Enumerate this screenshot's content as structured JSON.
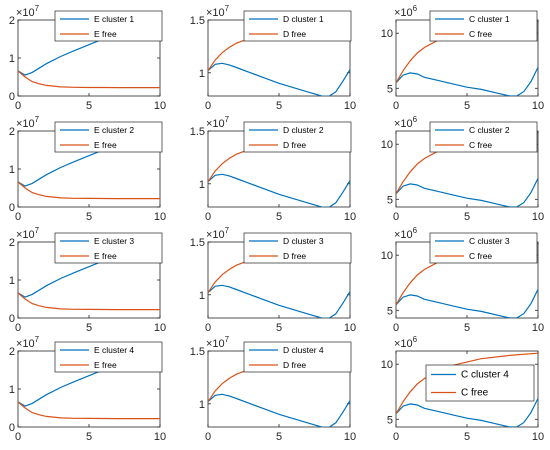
{
  "colors": {
    "cluster": "#0072BD",
    "free": "#D95319",
    "axis": "#262626"
  },
  "chart_data": [
    {
      "type": "line",
      "grid": false,
      "legend": "top-right",
      "x_ticks": [
        "0",
        "5",
        "10"
      ],
      "y_ticks": [
        "0",
        "1",
        "2"
      ],
      "y_exponent": "×10^7",
      "xlim": [
        0,
        10
      ],
      "ylim": [
        0,
        20000000
      ],
      "series": [
        {
          "name": "E cluster 1",
          "x": [
            0,
            0.5,
            1,
            2,
            3,
            4,
            5,
            6,
            7,
            8,
            9,
            10
          ],
          "y": [
            6600000,
            5500000,
            6200000,
            8500000,
            10400000,
            12000000,
            13500000,
            15000000,
            16200000,
            17200000,
            16800000,
            14800000
          ]
        },
        {
          "name": "E free",
          "x": [
            0,
            0.5,
            1,
            1.5,
            2,
            3,
            4,
            5,
            6,
            7,
            8,
            9,
            10
          ],
          "y": [
            6600000,
            5000000,
            3800000,
            3200000,
            2800000,
            2400000,
            2300000,
            2250000,
            2230000,
            2220000,
            2220000,
            2220000,
            2220000
          ]
        }
      ]
    },
    {
      "type": "line",
      "grid": false,
      "legend": "top-right",
      "x_ticks": [
        "0",
        "5",
        "10"
      ],
      "y_ticks": [
        "1",
        "1.5"
      ],
      "y_exponent": "×10^7",
      "xlim": [
        0,
        10
      ],
      "ylim": [
        7800000,
        15000000
      ],
      "series": [
        {
          "name": "D cluster 1",
          "x": [
            0,
            0.5,
            1,
            1.5,
            2,
            3,
            4,
            5,
            6,
            7,
            8,
            8.5,
            9,
            9.5,
            10
          ],
          "y": [
            10200000,
            10800000,
            10900000,
            10750000,
            10500000,
            10000000,
            9500000,
            9000000,
            8600000,
            8200000,
            7800000,
            7750000,
            8200000,
            9200000,
            10300000
          ]
        },
        {
          "name": "D free",
          "x": [
            0,
            0.5,
            1,
            1.5,
            2,
            3,
            4,
            6,
            8,
            10
          ],
          "y": [
            10200000,
            11200000,
            11900000,
            12400000,
            12800000,
            13300000,
            13700000,
            14100000,
            14300000,
            14400000
          ]
        }
      ]
    },
    {
      "type": "line",
      "grid": false,
      "legend": "top-right",
      "x_ticks": [
        "0",
        "5",
        "10"
      ],
      "y_ticks": [
        "5",
        "10"
      ],
      "y_exponent": "×10^6",
      "xlim": [
        0,
        10
      ],
      "ylim": [
        4300000,
        11200000
      ],
      "series": [
        {
          "name": "C cluster 1",
          "x": [
            0,
            0.5,
            1,
            1.5,
            2,
            3,
            4,
            5,
            6,
            7,
            8,
            8.5,
            9,
            9.5,
            10
          ],
          "y": [
            5500000,
            6200000,
            6400000,
            6300000,
            6000000,
            5700000,
            5400000,
            5100000,
            4900000,
            4600000,
            4300000,
            4300000,
            4700000,
            5600000,
            6900000
          ]
        },
        {
          "name": "C free",
          "x": [
            0,
            0.5,
            1,
            1.5,
            2,
            3,
            4,
            6,
            8,
            10
          ],
          "y": [
            5500000,
            6600000,
            7500000,
            8200000,
            8700000,
            9400000,
            9900000,
            10500000,
            10800000,
            11000000
          ]
        }
      ]
    },
    {
      "type": "line",
      "grid": false,
      "legend": "top-right",
      "x_ticks": [
        "0",
        "5",
        "10"
      ],
      "y_ticks": [
        "0",
        "1",
        "2"
      ],
      "y_exponent": "×10^7",
      "xlim": [
        0,
        10
      ],
      "ylim": [
        0,
        20000000
      ],
      "series": [
        {
          "name": "E cluster 2",
          "x": [
            0,
            0.5,
            1,
            2,
            3,
            4,
            5,
            6,
            7,
            8,
            9,
            10
          ],
          "y": [
            6600000,
            5500000,
            6200000,
            8500000,
            10400000,
            12000000,
            13500000,
            15000000,
            16200000,
            17200000,
            16800000,
            14800000
          ]
        },
        {
          "name": "E free",
          "x": [
            0,
            0.5,
            1,
            1.5,
            2,
            3,
            4,
            5,
            6,
            7,
            8,
            9,
            10
          ],
          "y": [
            6600000,
            5000000,
            3800000,
            3200000,
            2800000,
            2400000,
            2300000,
            2250000,
            2230000,
            2220000,
            2220000,
            2220000,
            2220000
          ]
        }
      ]
    },
    {
      "type": "line",
      "grid": false,
      "legend": "top-right",
      "x_ticks": [
        "0",
        "5",
        "10"
      ],
      "y_ticks": [
        "1",
        "1.5"
      ],
      "y_exponent": "×10^7",
      "xlim": [
        0,
        10
      ],
      "ylim": [
        7800000,
        15000000
      ],
      "series": [
        {
          "name": "D cluster 2",
          "x": [
            0,
            0.5,
            1,
            1.5,
            2,
            3,
            4,
            5,
            6,
            7,
            8,
            8.5,
            9,
            9.5,
            10
          ],
          "y": [
            10200000,
            10800000,
            10900000,
            10750000,
            10500000,
            10000000,
            9500000,
            9000000,
            8600000,
            8200000,
            7800000,
            7750000,
            8200000,
            9200000,
            10300000
          ]
        },
        {
          "name": "D free",
          "x": [
            0,
            0.5,
            1,
            1.5,
            2,
            3,
            4,
            6,
            8,
            10
          ],
          "y": [
            10200000,
            11200000,
            11900000,
            12400000,
            12800000,
            13300000,
            13700000,
            14100000,
            14300000,
            14400000
          ]
        }
      ]
    },
    {
      "type": "line",
      "grid": false,
      "legend": "top-right",
      "x_ticks": [
        "0",
        "5",
        "10"
      ],
      "y_ticks": [
        "5",
        "10"
      ],
      "y_exponent": "×10^6",
      "xlim": [
        0,
        10
      ],
      "ylim": [
        4300000,
        11200000
      ],
      "series": [
        {
          "name": "C cluster 2",
          "x": [
            0,
            0.5,
            1,
            1.5,
            2,
            3,
            4,
            5,
            6,
            7,
            8,
            8.5,
            9,
            9.5,
            10
          ],
          "y": [
            5500000,
            6200000,
            6400000,
            6300000,
            6000000,
            5700000,
            5400000,
            5100000,
            4900000,
            4600000,
            4300000,
            4300000,
            4700000,
            5600000,
            6900000
          ]
        },
        {
          "name": "C free",
          "x": [
            0,
            0.5,
            1,
            1.5,
            2,
            3,
            4,
            6,
            8,
            10
          ],
          "y": [
            5500000,
            6600000,
            7500000,
            8200000,
            8700000,
            9400000,
            9900000,
            10500000,
            10800000,
            11000000
          ]
        }
      ]
    },
    {
      "type": "line",
      "grid": false,
      "legend": "top-right",
      "x_ticks": [
        "0",
        "5",
        "10"
      ],
      "y_ticks": [
        "0",
        "1",
        "2"
      ],
      "y_exponent": "×10^7",
      "xlim": [
        0,
        10
      ],
      "ylim": [
        0,
        20000000
      ],
      "series": [
        {
          "name": "E cluster 3",
          "x": [
            0,
            0.5,
            1,
            2,
            3,
            4,
            5,
            6,
            7,
            8,
            9,
            10
          ],
          "y": [
            6600000,
            5500000,
            6200000,
            8500000,
            10400000,
            12000000,
            13500000,
            15000000,
            16200000,
            17200000,
            16800000,
            14800000
          ]
        },
        {
          "name": "E free",
          "x": [
            0,
            0.5,
            1,
            1.5,
            2,
            3,
            4,
            5,
            6,
            7,
            8,
            9,
            10
          ],
          "y": [
            6600000,
            5000000,
            3800000,
            3200000,
            2800000,
            2400000,
            2300000,
            2250000,
            2230000,
            2220000,
            2220000,
            2220000,
            2220000
          ]
        }
      ]
    },
    {
      "type": "line",
      "grid": false,
      "legend": "top-right",
      "x_ticks": [
        "0",
        "5",
        "10"
      ],
      "y_ticks": [
        "1",
        "1.5"
      ],
      "y_exponent": "×10^7",
      "xlim": [
        0,
        10
      ],
      "ylim": [
        7800000,
        15000000
      ],
      "series": [
        {
          "name": "D cluster 3",
          "x": [
            0,
            0.5,
            1,
            1.5,
            2,
            3,
            4,
            5,
            6,
            7,
            8,
            8.5,
            9,
            9.5,
            10
          ],
          "y": [
            10200000,
            10800000,
            10900000,
            10750000,
            10500000,
            10000000,
            9500000,
            9000000,
            8600000,
            8200000,
            7800000,
            7750000,
            8200000,
            9200000,
            10300000
          ]
        },
        {
          "name": "D free",
          "x": [
            0,
            0.5,
            1,
            1.5,
            2,
            3,
            4,
            6,
            8,
            10
          ],
          "y": [
            10200000,
            11200000,
            11900000,
            12400000,
            12800000,
            13300000,
            13700000,
            14100000,
            14300000,
            14400000
          ]
        }
      ]
    },
    {
      "type": "line",
      "grid": false,
      "legend": "top-right",
      "x_ticks": [
        "0",
        "5",
        "10"
      ],
      "y_ticks": [
        "5",
        "10"
      ],
      "y_exponent": "×10^6",
      "xlim": [
        0,
        10
      ],
      "ylim": [
        4300000,
        11200000
      ],
      "series": [
        {
          "name": "C cluster 3",
          "x": [
            0,
            0.5,
            1,
            1.5,
            2,
            3,
            4,
            5,
            6,
            7,
            8,
            8.5,
            9,
            9.5,
            10
          ],
          "y": [
            5500000,
            6200000,
            6400000,
            6300000,
            6000000,
            5700000,
            5400000,
            5100000,
            4900000,
            4600000,
            4300000,
            4300000,
            4700000,
            5600000,
            6900000
          ]
        },
        {
          "name": "C free",
          "x": [
            0,
            0.5,
            1,
            1.5,
            2,
            3,
            4,
            6,
            8,
            10
          ],
          "y": [
            5500000,
            6600000,
            7500000,
            8200000,
            8700000,
            9400000,
            9900000,
            10500000,
            10800000,
            11000000
          ]
        }
      ]
    },
    {
      "type": "line",
      "grid": false,
      "legend": "top-right",
      "x_ticks": [
        "0",
        "5",
        "10"
      ],
      "y_ticks": [
        "0",
        "1",
        "2"
      ],
      "y_exponent": "×10^7",
      "xlim": [
        0,
        10
      ],
      "ylim": [
        0,
        20000000
      ],
      "series": [
        {
          "name": "E cluster 4",
          "x": [
            0,
            0.5,
            1,
            2,
            3,
            4,
            5,
            6,
            7,
            8,
            9,
            10
          ],
          "y": [
            6600000,
            5500000,
            6200000,
            8500000,
            10400000,
            12000000,
            13500000,
            15000000,
            16200000,
            17200000,
            16800000,
            14800000
          ]
        },
        {
          "name": "E free",
          "x": [
            0,
            0.5,
            1,
            1.5,
            2,
            3,
            4,
            5,
            6,
            7,
            8,
            9,
            10
          ],
          "y": [
            6600000,
            5000000,
            3800000,
            3200000,
            2800000,
            2400000,
            2300000,
            2250000,
            2230000,
            2220000,
            2220000,
            2220000,
            2220000
          ]
        }
      ]
    },
    {
      "type": "line",
      "grid": false,
      "legend": "top-right",
      "x_ticks": [
        "0",
        "5",
        "10"
      ],
      "y_ticks": [
        "1",
        "1.5"
      ],
      "y_exponent": "×10^7",
      "xlim": [
        0,
        10
      ],
      "ylim": [
        7800000,
        15000000
      ],
      "series": [
        {
          "name": "D cluster 4",
          "x": [
            0,
            0.5,
            1,
            1.5,
            2,
            3,
            4,
            5,
            6,
            7,
            8,
            8.5,
            9,
            9.5,
            10
          ],
          "y": [
            10200000,
            10800000,
            10900000,
            10750000,
            10500000,
            10000000,
            9500000,
            9000000,
            8600000,
            8200000,
            7800000,
            7750000,
            8200000,
            9200000,
            10300000
          ]
        },
        {
          "name": "D free",
          "x": [
            0,
            0.5,
            1,
            1.5,
            2,
            3,
            4,
            6,
            8,
            10
          ],
          "y": [
            10200000,
            11200000,
            11900000,
            12400000,
            12800000,
            13300000,
            13700000,
            14100000,
            14300000,
            14400000
          ]
        }
      ]
    },
    {
      "type": "line",
      "grid": false,
      "legend": "top-right",
      "x_ticks": [
        "0",
        "5",
        "10"
      ],
      "y_ticks": [
        "5",
        "10"
      ],
      "y_exponent": "×10^6",
      "xlim": [
        0,
        10
      ],
      "ylim": [
        4300000,
        11200000
      ],
      "series": [
        {
          "name": "C cluster 4",
          "x": [
            0,
            0.5,
            1,
            1.5,
            2,
            3,
            4,
            5,
            6,
            7,
            8,
            8.5,
            9,
            9.5,
            10
          ],
          "y": [
            5500000,
            6200000,
            6400000,
            6300000,
            6000000,
            5700000,
            5400000,
            5100000,
            4900000,
            4600000,
            4300000,
            4300000,
            4700000,
            5600000,
            6900000
          ]
        },
        {
          "name": "C free",
          "x": [
            0,
            0.5,
            1,
            1.5,
            2,
            3,
            4,
            6,
            8,
            10
          ],
          "y": [
            5500000,
            6600000,
            7500000,
            8200000,
            8700000,
            9400000,
            9900000,
            10500000,
            10800000,
            11000000
          ]
        }
      ]
    }
  ]
}
